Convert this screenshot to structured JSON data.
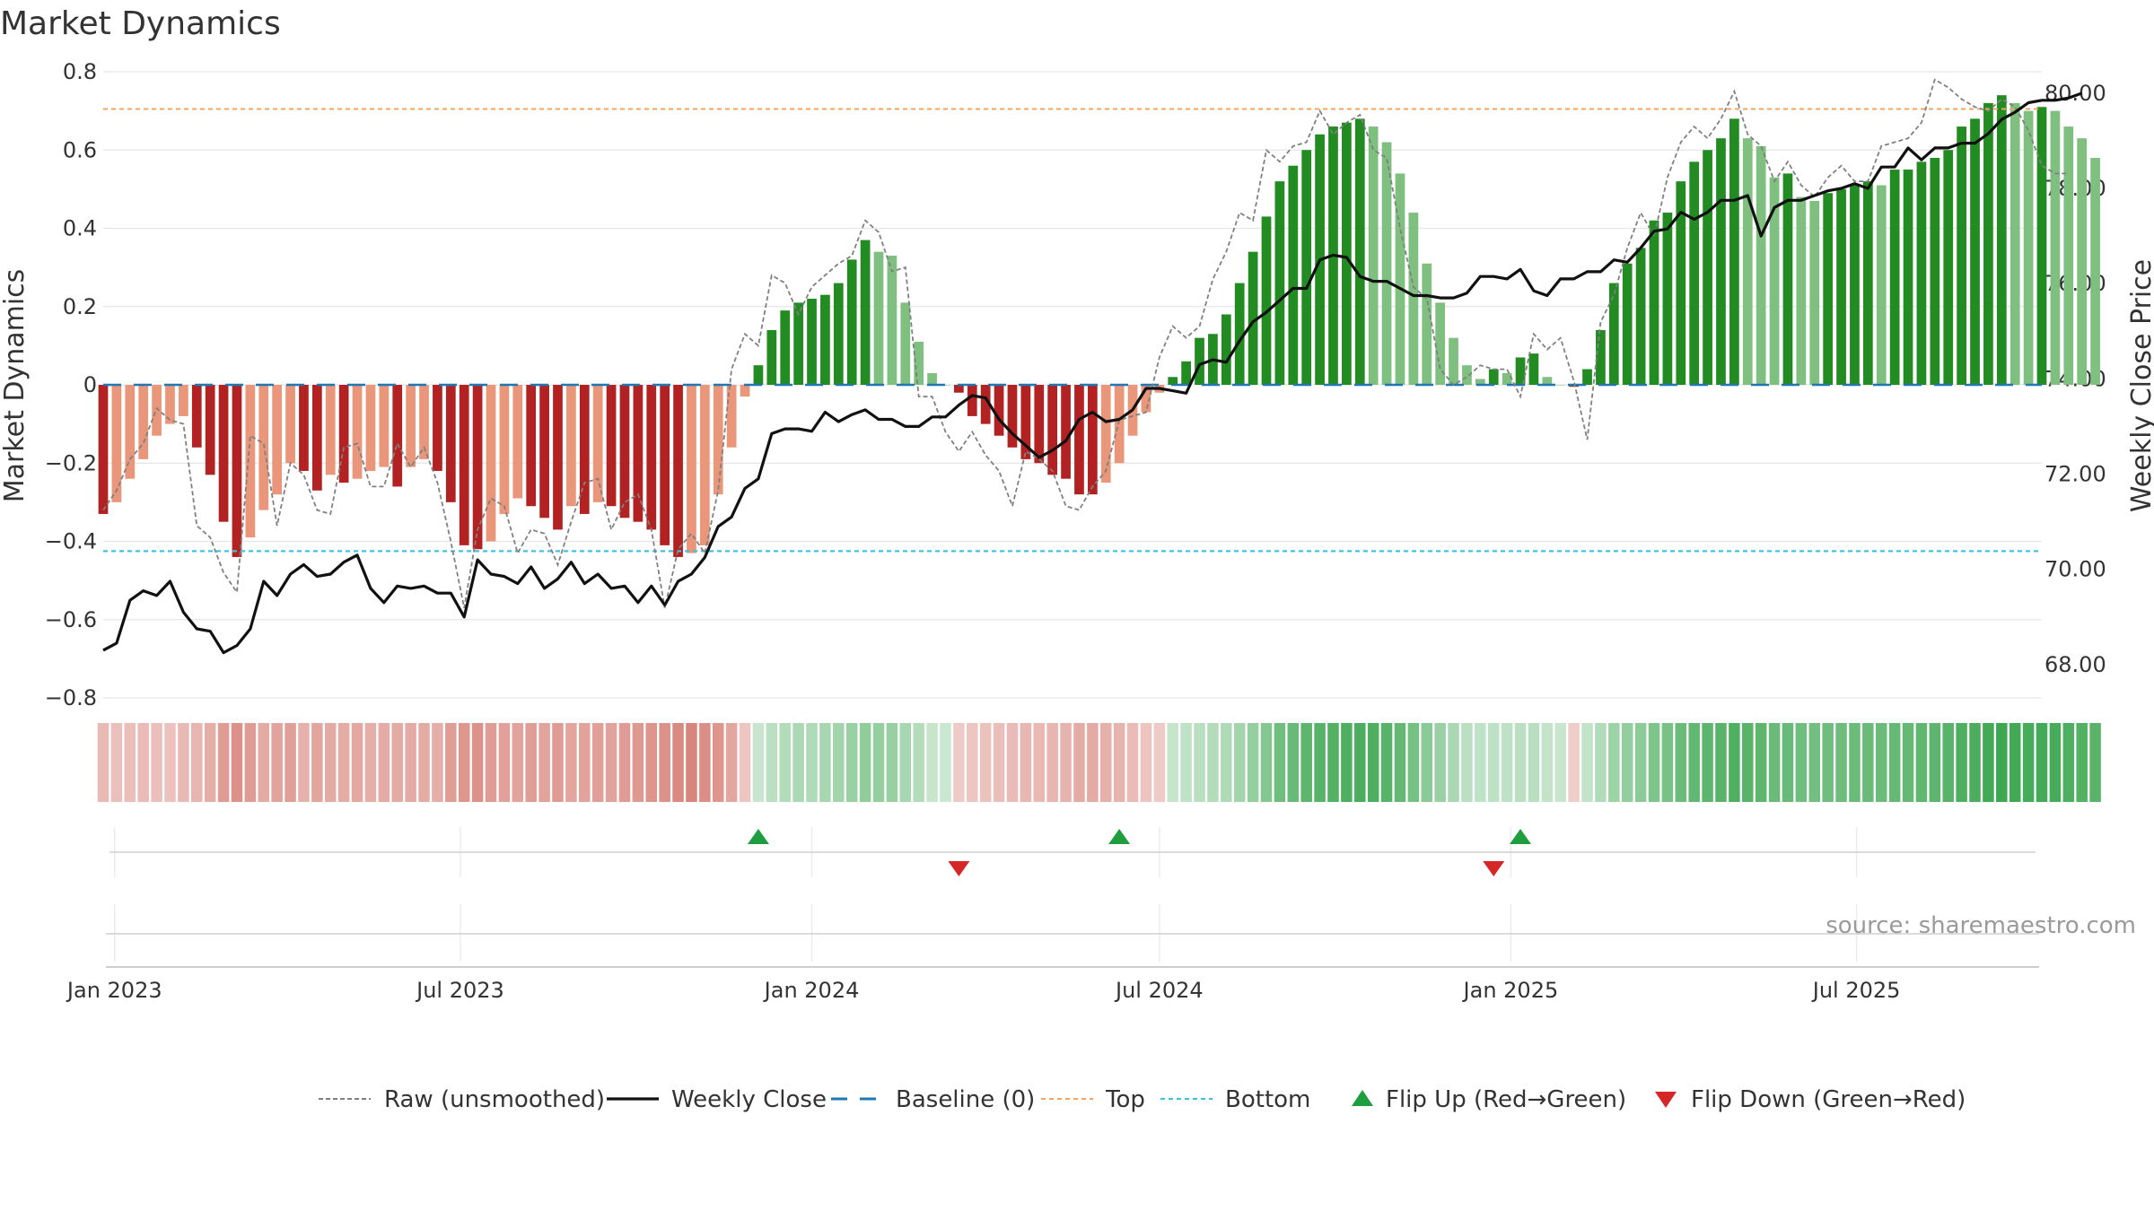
{
  "colors": {
    "strong_red": "#b22222",
    "light_red": "#e9967a",
    "strong_green": "#228b22",
    "light_green": "#7fbf7f",
    "top_line": "#f4a460",
    "bottom_line": "#40c4dc",
    "baseline": "#1f77b4",
    "raw": "#808080",
    "close": "#111111",
    "flip_up": "#1e9e3e",
    "flip_down": "#d62728",
    "grid": "#e6e6e6"
  },
  "chart_data": {
    "type": "bar",
    "title": "Market Dynamics",
    "ylabel": "Market Dynamics",
    "ylabel_right": "Weekly Close Price",
    "ylim": [
      -0.8,
      0.8
    ],
    "ylim_right": [
      67.3,
      80.45
    ],
    "yticks": [
      0.8,
      0.6,
      0.4,
      0.2,
      0,
      -0.2,
      -0.4,
      -0.6,
      -0.8
    ],
    "ytick_labels": [
      "0.8",
      "0.6",
      "0.4",
      "0.2",
      "0",
      "−0.2",
      "−0.4",
      "−0.6",
      "−0.8"
    ],
    "yticks_right": [
      80,
      78,
      76,
      74,
      72,
      70,
      68
    ],
    "ytick_right_labels": [
      "80.00",
      "78.00",
      "76.00",
      "74.00",
      "72.00",
      "70.00",
      "68.00"
    ],
    "x_range": [
      "2022-12-26",
      "2025-10-06"
    ],
    "xticks": [
      "2023-01-01",
      "2023-07-01",
      "2024-01-01",
      "2024-07-01",
      "2025-01-01",
      "2025-07-01"
    ],
    "xtick_labels": [
      "Jan 2023",
      "Jul 2023",
      "Jan 2024",
      "Jul 2024",
      "Jan 2025",
      "Jul 2025"
    ],
    "start_date": "2022-12-26",
    "week_step_days": 7,
    "top_level": 0.705,
    "bottom_level": -0.425,
    "bar_values": [
      -0.33,
      -0.3,
      -0.24,
      -0.19,
      -0.13,
      -0.1,
      -0.08,
      -0.16,
      -0.23,
      -0.35,
      -0.44,
      -0.39,
      -0.32,
      -0.28,
      -0.2,
      -0.22,
      -0.27,
      -0.23,
      -0.25,
      -0.24,
      -0.22,
      -0.21,
      -0.26,
      -0.21,
      -0.19,
      -0.22,
      -0.3,
      -0.41,
      -0.42,
      -0.4,
      -0.33,
      -0.29,
      -0.31,
      -0.34,
      -0.37,
      -0.31,
      -0.33,
      -0.3,
      -0.31,
      -0.34,
      -0.35,
      -0.37,
      -0.41,
      -0.44,
      -0.43,
      -0.41,
      -0.28,
      -0.16,
      -0.03,
      0.05,
      0.14,
      0.19,
      0.21,
      0.22,
      0.23,
      0.26,
      0.32,
      0.37,
      0.34,
      0.33,
      0.21,
      0.11,
      0.03,
      0.0,
      -0.02,
      -0.08,
      -0.1,
      -0.13,
      -0.16,
      -0.19,
      -0.2,
      -0.23,
      -0.24,
      -0.28,
      -0.28,
      -0.25,
      -0.2,
      -0.13,
      -0.07,
      -0.02,
      0.02,
      0.06,
      0.12,
      0.13,
      0.18,
      0.26,
      0.34,
      0.43,
      0.52,
      0.56,
      0.6,
      0.64,
      0.66,
      0.67,
      0.68,
      0.66,
      0.62,
      0.54,
      0.44,
      0.31,
      0.21,
      0.12,
      0.05,
      0.015,
      0.04,
      0.03,
      0.07,
      0.08,
      0.02,
      0.0,
      -0.005,
      0.04,
      0.14,
      0.26,
      0.31,
      0.35,
      0.42,
      0.44,
      0.52,
      0.57,
      0.6,
      0.63,
      0.68,
      0.63,
      0.61,
      0.53,
      0.54,
      0.48,
      0.47,
      0.49,
      0.5,
      0.51,
      0.52,
      0.51,
      0.55,
      0.55,
      0.57,
      0.58,
      0.6,
      0.66,
      0.68,
      0.72,
      0.74,
      0.72,
      0.7,
      0.71,
      0.7,
      0.66,
      0.63,
      0.58
    ],
    "raw_values": [
      -0.32,
      -0.27,
      -0.19,
      -0.15,
      -0.06,
      -0.09,
      -0.1,
      -0.36,
      -0.39,
      -0.48,
      -0.53,
      -0.13,
      -0.15,
      -0.36,
      -0.2,
      -0.23,
      -0.32,
      -0.33,
      -0.16,
      -0.15,
      -0.26,
      -0.26,
      -0.15,
      -0.21,
      -0.16,
      -0.25,
      -0.4,
      -0.57,
      -0.37,
      -0.29,
      -0.31,
      -0.43,
      -0.37,
      -0.38,
      -0.46,
      -0.35,
      -0.25,
      -0.24,
      -0.37,
      -0.3,
      -0.28,
      -0.37,
      -0.57,
      -0.42,
      -0.38,
      -0.43,
      -0.27,
      0.04,
      0.13,
      0.1,
      0.28,
      0.26,
      0.18,
      0.25,
      0.28,
      0.31,
      0.33,
      0.42,
      0.39,
      0.29,
      0.3,
      -0.03,
      -0.03,
      -0.12,
      -0.17,
      -0.12,
      -0.18,
      -0.22,
      -0.31,
      -0.17,
      -0.19,
      -0.22,
      -0.31,
      -0.32,
      -0.26,
      -0.22,
      -0.09,
      -0.08,
      -0.07,
      0.07,
      0.15,
      0.12,
      0.15,
      0.27,
      0.34,
      0.44,
      0.42,
      0.6,
      0.57,
      0.61,
      0.62,
      0.7,
      0.64,
      0.67,
      0.69,
      0.6,
      0.58,
      0.4,
      0.25,
      0.22,
      0.04,
      0.0,
      0.02,
      0.05,
      0.04,
      0.04,
      -0.03,
      0.13,
      0.09,
      0.12,
      0.01,
      -0.14,
      0.16,
      0.23,
      0.35,
      0.44,
      0.38,
      0.53,
      0.62,
      0.66,
      0.63,
      0.68,
      0.75,
      0.64,
      0.61,
      0.52,
      0.57,
      0.51,
      0.48,
      0.53,
      0.56,
      0.52,
      0.52,
      0.61,
      0.62,
      0.63,
      0.67,
      0.78,
      0.76,
      0.73,
      0.71,
      0.7,
      0.73,
      0.71,
      0.65,
      0.56,
      0.54,
      0.54
    ],
    "close_values": [
      68.3,
      68.45,
      69.35,
      69.55,
      69.45,
      69.75,
      69.1,
      68.75,
      68.7,
      68.25,
      68.4,
      68.75,
      69.75,
      69.45,
      69.9,
      70.1,
      69.85,
      69.9,
      70.15,
      70.3,
      69.6,
      69.3,
      69.65,
      69.6,
      69.65,
      69.5,
      69.5,
      69.0,
      70.2,
      69.9,
      69.85,
      69.7,
      70.05,
      69.6,
      69.8,
      70.15,
      69.7,
      69.9,
      69.6,
      69.65,
      69.3,
      69.65,
      69.25,
      69.75,
      69.9,
      70.25,
      70.9,
      71.1,
      71.7,
      71.9,
      72.85,
      72.95,
      72.95,
      72.9,
      73.3,
      73.1,
      73.25,
      73.35,
      73.15,
      73.15,
      73.0,
      73.0,
      73.2,
      73.2,
      73.45,
      73.65,
      73.6,
      73.15,
      72.85,
      72.6,
      72.35,
      72.5,
      72.7,
      73.15,
      73.3,
      73.1,
      73.15,
      73.35,
      73.8,
      73.8,
      73.75,
      73.7,
      74.3,
      74.4,
      74.35,
      74.8,
      75.2,
      75.4,
      75.65,
      75.9,
      75.9,
      76.5,
      76.6,
      76.55,
      76.15,
      76.05,
      76.05,
      75.9,
      75.75,
      75.75,
      75.7,
      75.7,
      75.8,
      76.15,
      76.15,
      76.1,
      76.3,
      75.85,
      75.75,
      76.1,
      76.1,
      76.25,
      76.25,
      76.5,
      76.45,
      76.75,
      77.1,
      77.15,
      77.5,
      77.35,
      77.5,
      77.75,
      77.75,
      77.85,
      77.0,
      77.6,
      77.75,
      77.75,
      77.85,
      77.95,
      78.0,
      78.1,
      78.0,
      78.45,
      78.45,
      78.85,
      78.6,
      78.85,
      78.85,
      78.95,
      78.95,
      79.15,
      79.45,
      79.6,
      79.8,
      79.85,
      79.85,
      79.9,
      80.0
    ],
    "strength_values": [
      0.12,
      0.09,
      0.1,
      0.11,
      0.09,
      0.08,
      0.12,
      0.14,
      0.17,
      0.26,
      0.3,
      0.26,
      0.19,
      0.22,
      0.24,
      0.16,
      0.21,
      0.19,
      0.18,
      0.2,
      0.17,
      0.18,
      0.19,
      0.19,
      0.18,
      0.17,
      0.25,
      0.28,
      0.3,
      0.25,
      0.23,
      0.22,
      0.25,
      0.22,
      0.26,
      0.21,
      0.22,
      0.24,
      0.22,
      0.26,
      0.27,
      0.29,
      0.3,
      0.34,
      0.36,
      0.32,
      0.28,
      0.21,
      0.06,
      0.04,
      0.1,
      0.13,
      0.16,
      0.15,
      0.18,
      0.2,
      0.24,
      0.28,
      0.26,
      0.25,
      0.18,
      0.13,
      0.05,
      0.03,
      0.04,
      0.06,
      0.08,
      0.1,
      0.11,
      0.13,
      0.12,
      0.14,
      0.15,
      0.18,
      0.19,
      0.16,
      0.15,
      0.11,
      0.07,
      0.04,
      0.05,
      0.08,
      0.11,
      0.13,
      0.15,
      0.2,
      0.26,
      0.33,
      0.42,
      0.46,
      0.5,
      0.53,
      0.55,
      0.57,
      0.58,
      0.57,
      0.53,
      0.47,
      0.4,
      0.31,
      0.24,
      0.17,
      0.1,
      0.08,
      0.09,
      0.08,
      0.1,
      0.11,
      0.06,
      0.04,
      0.03,
      0.07,
      0.14,
      0.22,
      0.27,
      0.3,
      0.36,
      0.38,
      0.44,
      0.48,
      0.5,
      0.52,
      0.56,
      0.52,
      0.5,
      0.45,
      0.46,
      0.42,
      0.41,
      0.42,
      0.43,
      0.44,
      0.45,
      0.44,
      0.47,
      0.47,
      0.49,
      0.5,
      0.52,
      0.57,
      0.58,
      0.62,
      0.64,
      0.62,
      0.6,
      0.61,
      0.6,
      0.57,
      0.55,
      0.52
    ],
    "flips": [
      {
        "type": "up",
        "date": "2023-12-04"
      },
      {
        "type": "down",
        "date": "2024-03-18"
      },
      {
        "type": "up",
        "date": "2024-06-10"
      },
      {
        "type": "down",
        "date": "2024-12-23"
      },
      {
        "type": "up",
        "date": "2025-01-06"
      }
    ],
    "legend_placement": "bottom-center",
    "grid": true,
    "source": "source: sharemaestro.com"
  },
  "legend": [
    {
      "key": "raw",
      "label": "Raw (unsmoothed)"
    },
    {
      "key": "close",
      "label": "Weekly Close"
    },
    {
      "key": "baseline",
      "label": "Baseline (0)"
    },
    {
      "key": "top",
      "label": "Top"
    },
    {
      "key": "bottom",
      "label": "Bottom"
    },
    {
      "key": "flip_up",
      "label": "Flip Up (Red→Green)"
    },
    {
      "key": "flip_down",
      "label": "Flip Down (Green→Red)"
    }
  ]
}
